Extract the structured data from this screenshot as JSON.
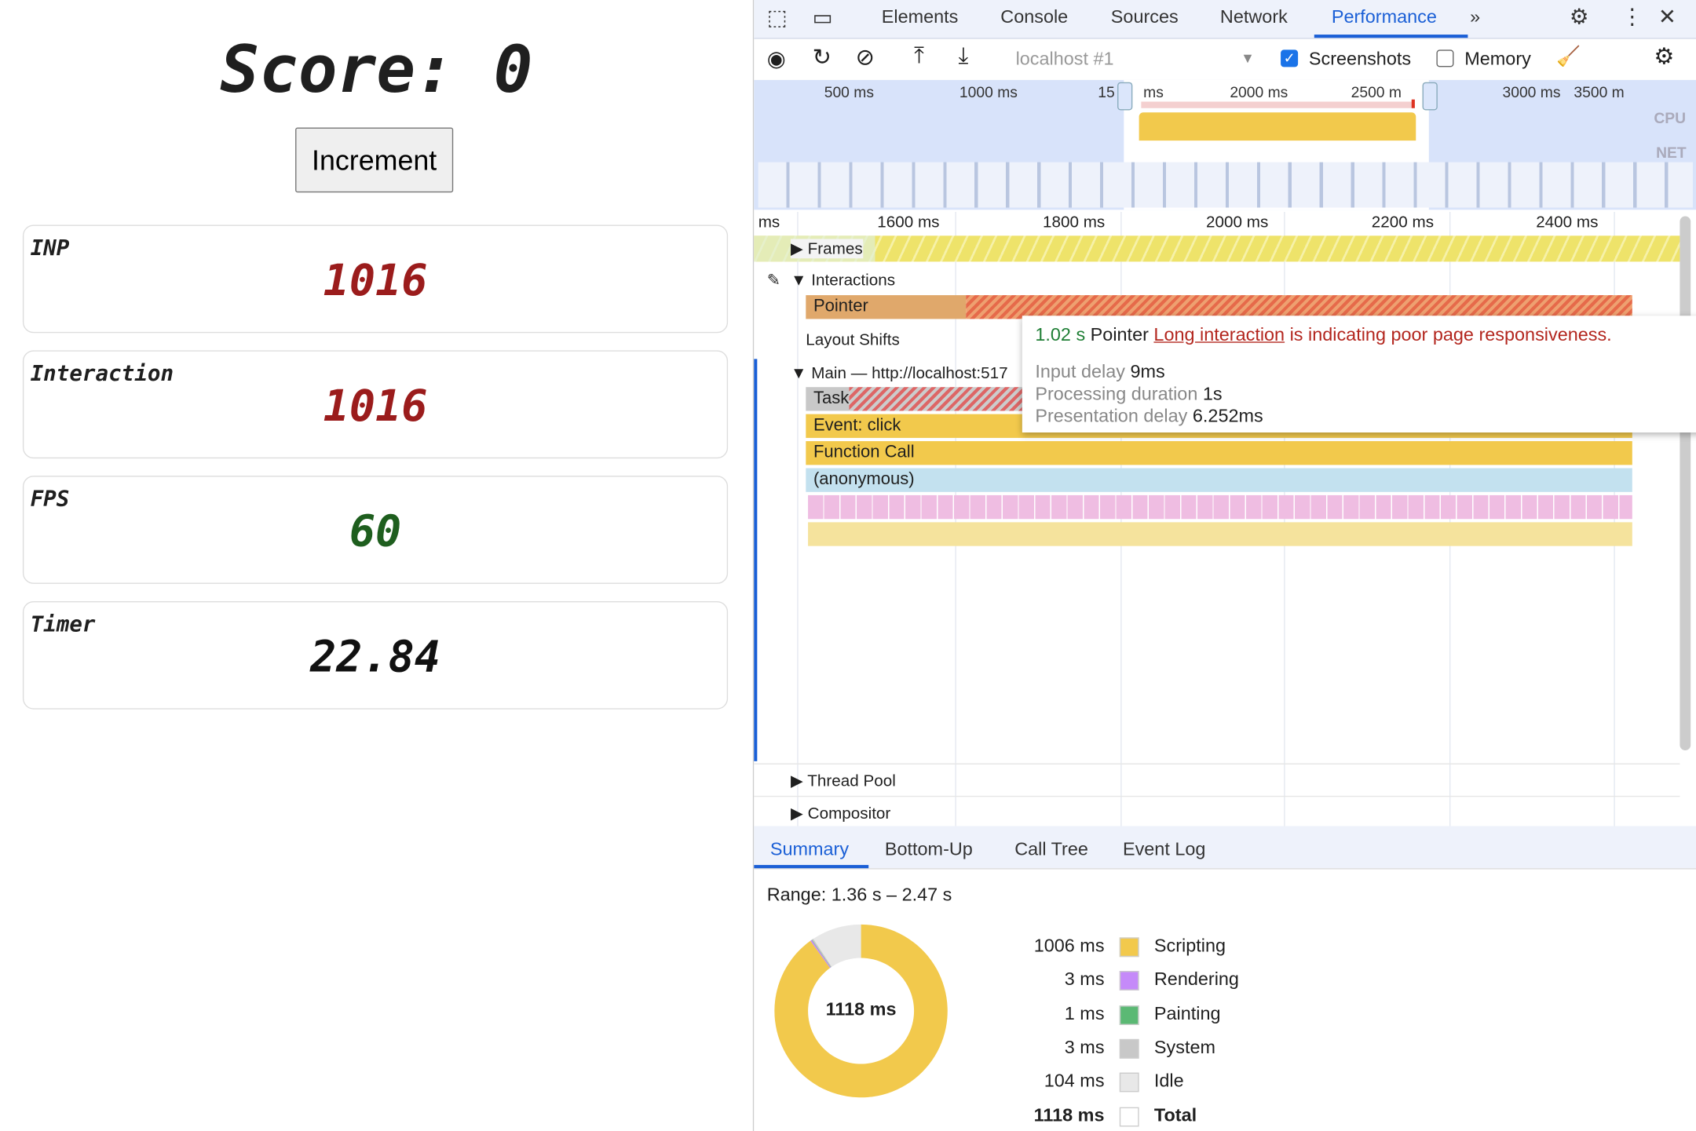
{
  "app": {
    "score_label": "Score: 0",
    "increment_label": "Increment",
    "cards": [
      {
        "label": "INP",
        "value": "1016",
        "color": "#9b1c1c"
      },
      {
        "label": "Interaction",
        "value": "1016",
        "color": "#9b1c1c"
      },
      {
        "label": "FPS",
        "value": "60",
        "color": "#1e5e1e"
      },
      {
        "label": "Timer",
        "value": "22.84",
        "color": "#111111"
      }
    ]
  },
  "devtools": {
    "tabs": [
      "Elements",
      "Console",
      "Sources",
      "Network",
      "Performance"
    ],
    "active_tab": "Performance",
    "toolbar": {
      "target": "localhost #1",
      "screenshots_label": "Screenshots",
      "screenshots_checked": true,
      "memory_label": "Memory",
      "memory_checked": false
    },
    "overview": {
      "ticks": [
        "500 ms",
        "1000 ms",
        "15",
        "ms",
        "2000 ms",
        "2500 m",
        "3000 ms",
        "3500 m"
      ],
      "cpu_label": "CPU",
      "net_label": "NET"
    },
    "ruler": [
      "ms",
      "1600 ms",
      "1800 ms",
      "2000 ms",
      "2200 ms",
      "2400 ms"
    ],
    "tracks": {
      "frames": "Frames",
      "interactions": "Interactions",
      "pointer": "Pointer",
      "layout_shifts": "Layout Shifts",
      "main": "Main — http://localhost:517",
      "task": "Task",
      "event_click": "Event: click",
      "function_call": "Function Call",
      "anonymous": "(anonymous)",
      "thread_pool": "Thread Pool",
      "compositor": "Compositor"
    },
    "tooltip": {
      "duration": "1.02 s",
      "type": "Pointer",
      "link": "Long interaction",
      "message": " is indicating poor page responsiveness.",
      "rows": [
        {
          "label": "Input delay",
          "value": "9ms"
        },
        {
          "label": "Processing duration",
          "value": "1s"
        },
        {
          "label": "Presentation delay",
          "value": "6.252ms"
        }
      ]
    },
    "bottom_tabs": [
      "Summary",
      "Bottom-Up",
      "Call Tree",
      "Event Log"
    ],
    "active_bottom_tab": "Summary",
    "summary": {
      "range": "Range: 1.36 s – 2.47 s",
      "total_center": "1118 ms",
      "items": [
        {
          "value": "1006 ms",
          "label": "Scripting",
          "color": "#f2c94c",
          "ms": 1006
        },
        {
          "value": "3 ms",
          "label": "Rendering",
          "color": "#c58af9",
          "ms": 3
        },
        {
          "value": "1 ms",
          "label": "Painting",
          "color": "#5bb974",
          "ms": 1
        },
        {
          "value": "3 ms",
          "label": "System",
          "color": "#c8c8c8",
          "ms": 3
        },
        {
          "value": "104 ms",
          "label": "Idle",
          "color": "#e8e8e8",
          "ms": 104
        },
        {
          "value": "1118 ms",
          "label": "Total",
          "color": "#ffffff"
        }
      ]
    }
  }
}
